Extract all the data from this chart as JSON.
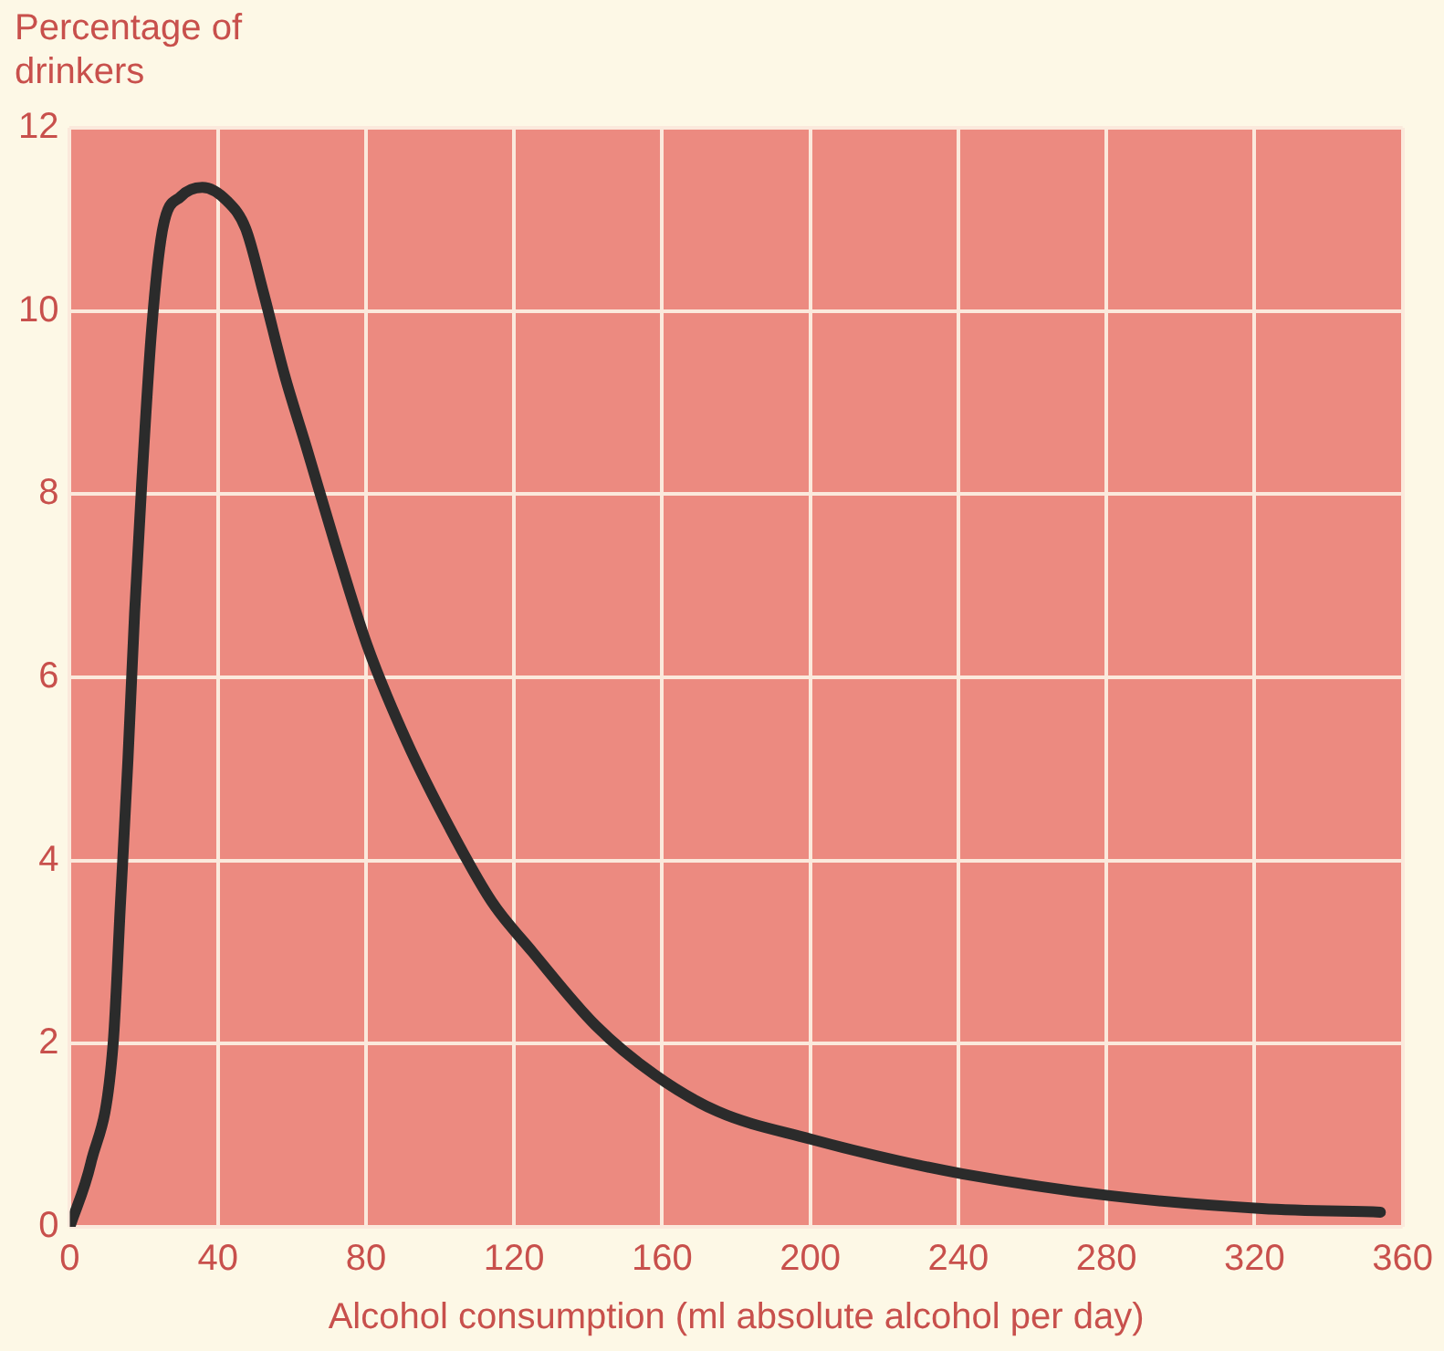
{
  "chart_data": {
    "type": "line",
    "xlabel": "Alcohol consumption (ml absolute alcohol per day)",
    "ylabel": "Percentage of drinkers",
    "series": [
      {
        "color": "#2b2b2b",
        "x": [
          0,
          5.7,
          11.7,
          13.7,
          15.7,
          17.5,
          19.4,
          22.1,
          25.1,
          30,
          35.8,
          42.5,
          47.5,
          52.3,
          58,
          64,
          71.7,
          80.3,
          91,
          102.7,
          114,
          125,
          142,
          158,
          175,
          200,
          224,
          241,
          281,
          322,
          354
        ],
        "values": [
          0,
          0.7,
          2,
          3.55,
          5.1,
          6.7,
          8.1,
          9.8,
          10.9,
          11.25,
          11.35,
          11.2,
          10.9,
          10.2,
          9.3,
          8.5,
          7.45,
          6.35,
          5.3,
          4.35,
          3.55,
          3.0,
          2.2,
          1.66,
          1.26,
          0.96,
          0.72,
          0.58,
          0.34,
          0.2,
          0.16
        ]
      }
    ],
    "xlim": [
      0,
      360
    ],
    "xticks": [
      0,
      40,
      80,
      120,
      160,
      200,
      240,
      280,
      320,
      360
    ],
    "ylim": [
      0,
      12
    ],
    "yticks": [
      0,
      2,
      4,
      6,
      8,
      10,
      12
    ],
    "grid": true,
    "legend": false,
    "marker": "none",
    "line_style": "solid"
  }
}
